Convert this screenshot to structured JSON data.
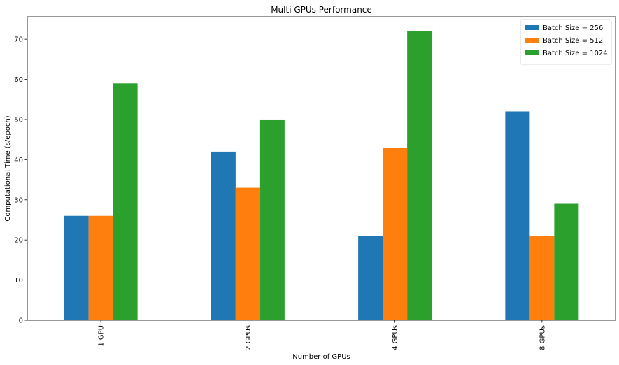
{
  "chart_data": {
    "type": "bar",
    "title": "Multi GPUs Performance",
    "xlabel": "Number of GPUs",
    "ylabel": "Computational Time (s/epoch)",
    "categories": [
      "1 GPU",
      "2 GPUs",
      "4 GPUs",
      "8 GPUs"
    ],
    "series": [
      {
        "name": "Batch Size = 256",
        "values": [
          26,
          42,
          21,
          52
        ],
        "color": "#1f77b4"
      },
      {
        "name": "Batch Size = 512",
        "values": [
          26,
          33,
          43,
          21
        ],
        "color": "#ff7f0e"
      },
      {
        "name": "Batch Size = 1024",
        "values": [
          59,
          50,
          72,
          29
        ],
        "color": "#2ca02c"
      }
    ],
    "ylim": [
      0,
      75.6
    ],
    "yticks": [
      0,
      10,
      20,
      30,
      40,
      50,
      60,
      70
    ],
    "xtick_rotation": "vertical",
    "legend_position": "top-right",
    "grid": false
  }
}
